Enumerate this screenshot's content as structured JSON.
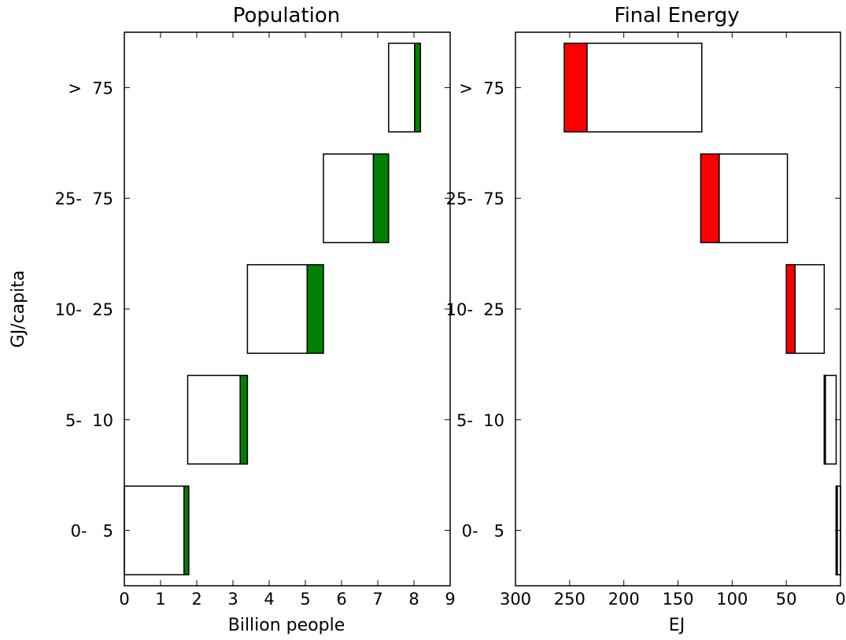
{
  "chart_data": [
    {
      "type": "bar",
      "orientation": "horizontal-stacked-floating",
      "title": "Population",
      "xlabel": "Billion people",
      "ylabel": "GJ/capita",
      "categories": [
        "0-   5",
        "5-  10",
        "10-  25",
        "25-  75",
        ">  75"
      ],
      "xlim": [
        0,
        9
      ],
      "xticks": [
        "0",
        "1",
        "2",
        "3",
        "4",
        "5",
        "6",
        "7",
        "8",
        "9"
      ],
      "series": [
        {
          "role": "white-segment",
          "color": "#ffffff",
          "ranges": [
            [
              0,
              1.65
            ],
            [
              1.75,
              3.2
            ],
            [
              3.4,
              5.05
            ],
            [
              5.5,
              6.88
            ],
            [
              7.3,
              8.02
            ]
          ]
        },
        {
          "role": "green-segment",
          "color": "#008000",
          "ranges": [
            [
              1.65,
              1.78
            ],
            [
              3.2,
              3.4
            ],
            [
              5.05,
              5.5
            ],
            [
              6.88,
              7.3
            ],
            [
              8.02,
              8.18
            ]
          ]
        }
      ]
    },
    {
      "type": "bar",
      "orientation": "horizontal-stacked-floating",
      "title": "Final Energy",
      "xlabel": "EJ",
      "ylabel": "",
      "categories": [
        "0-   5",
        "5-  10",
        "10-  25",
        "25-  75",
        ">  75"
      ],
      "xlim": [
        300,
        0
      ],
      "xaxis_reversed": true,
      "xticks": [
        "300",
        "250",
        "200",
        "150",
        "100",
        "50",
        "0"
      ],
      "series": [
        {
          "role": "white-segment",
          "color": "#ffffff",
          "ranges": [
            [
              0,
              4
            ],
            [
              4,
              15
            ],
            [
              15,
              42
            ],
            [
              49,
              112
            ],
            [
              128,
              234
            ]
          ]
        },
        {
          "role": "red-segment",
          "color": "#ff0000",
          "ranges": [
            [
              4,
              4
            ],
            [
              14,
              15
            ],
            [
              42,
              50
            ],
            [
              112,
              129
            ],
            [
              234,
              255
            ]
          ]
        }
      ]
    }
  ]
}
